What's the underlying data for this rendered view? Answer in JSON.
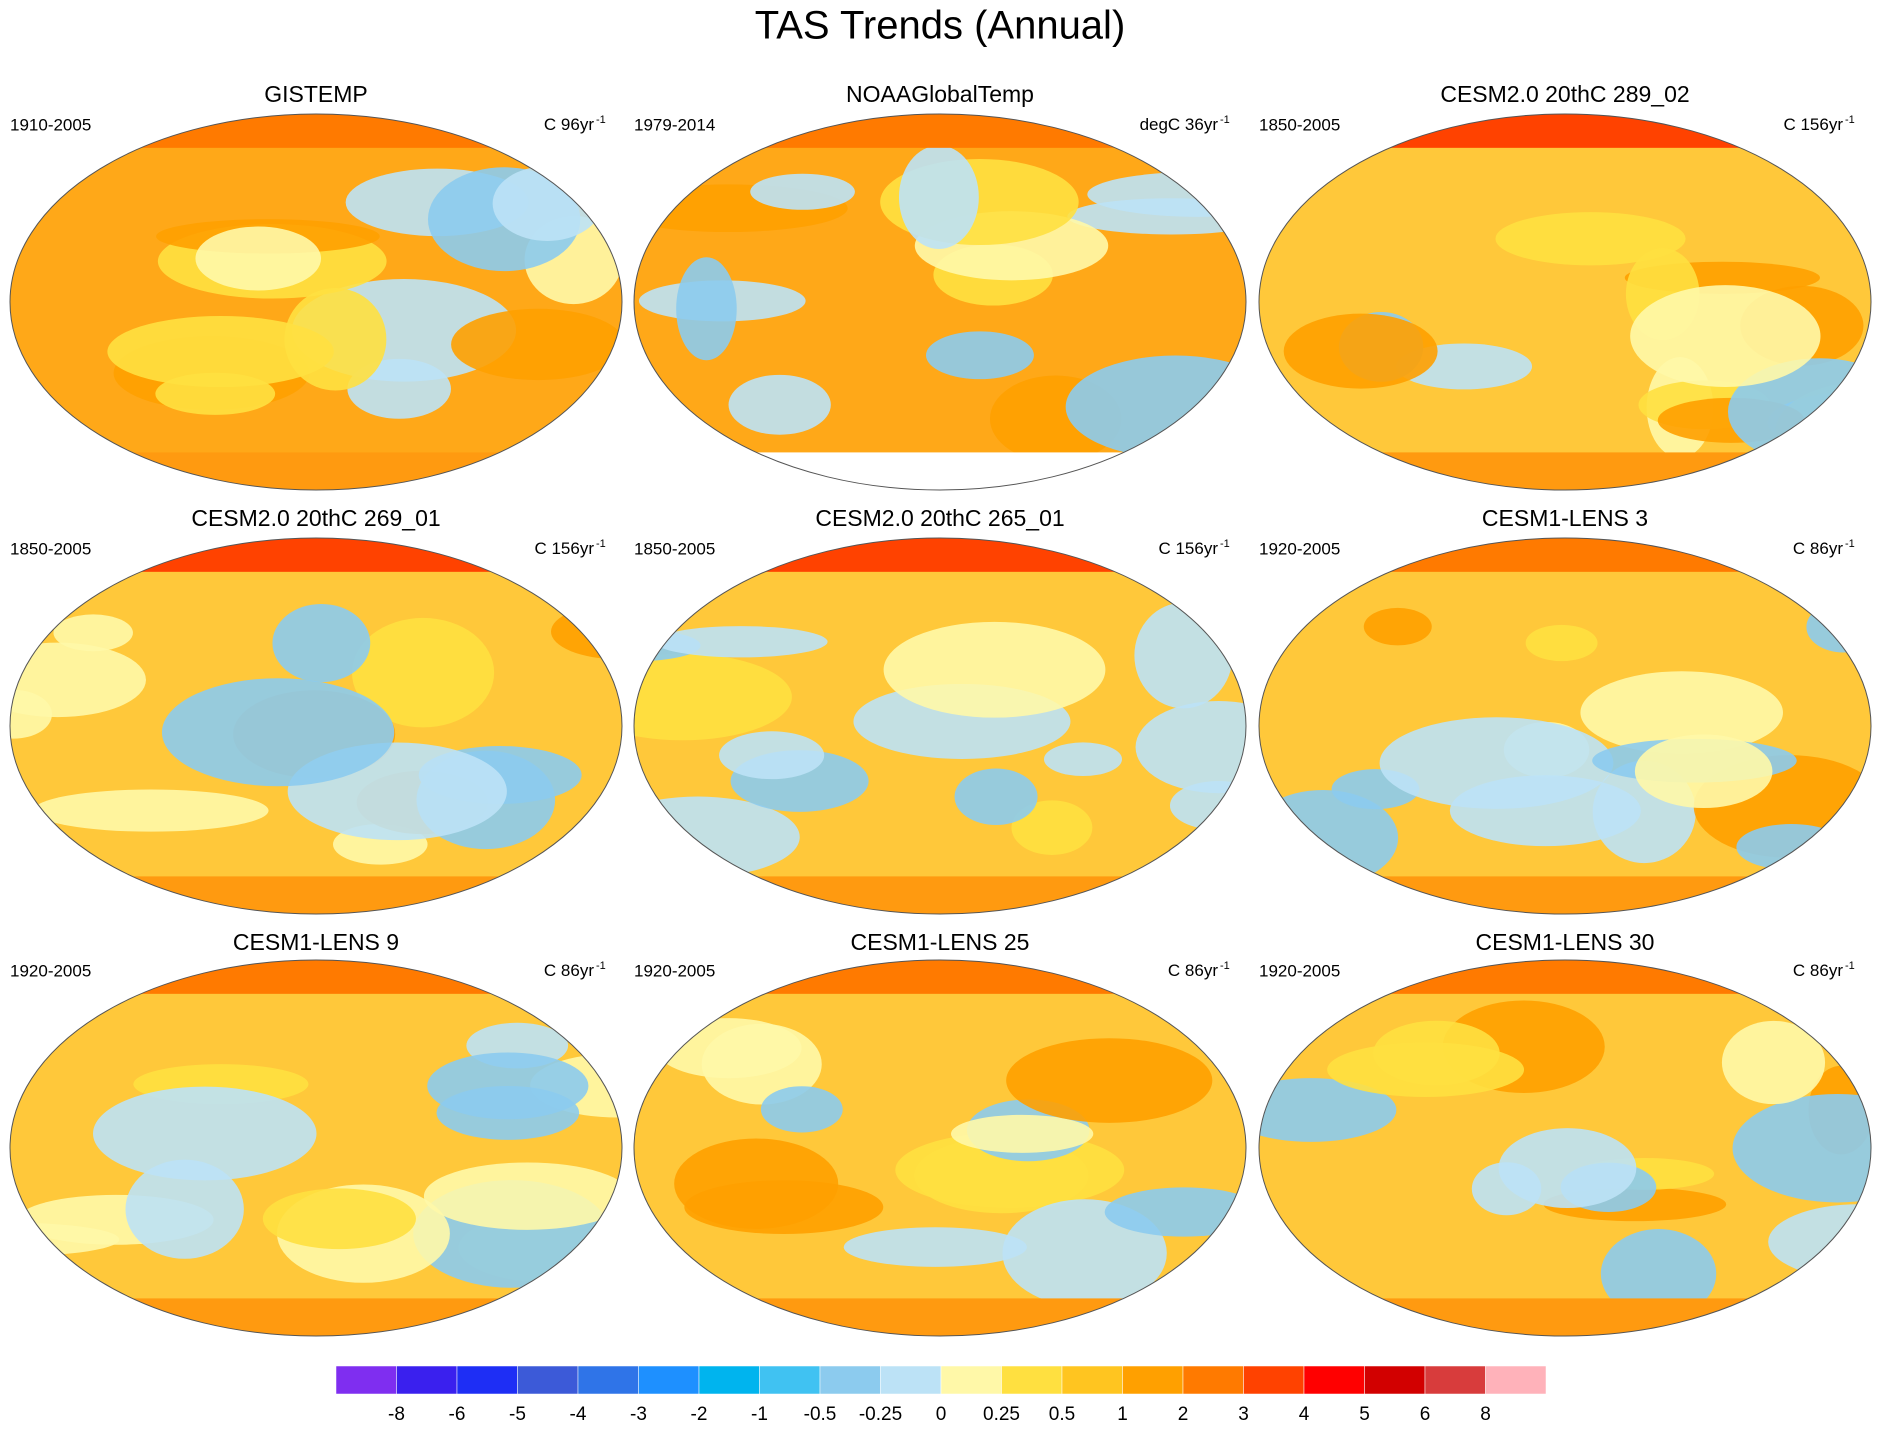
{
  "title": "TAS Trends (Annual)",
  "panels": [
    {
      "title": "GISTEMP",
      "period": "1910-2005",
      "units": "C 96yr",
      "exponent": "-1"
    },
    {
      "title": "NOAAGlobalTemp",
      "period": "1979-2014",
      "units": "degC 36yr",
      "exponent": "-1"
    },
    {
      "title": "CESM2.0 20thC 289_02",
      "period": "1850-2005",
      "units": "C 156yr",
      "exponent": "-1"
    },
    {
      "title": "CESM2.0 20thC 269_01",
      "period": "1850-2005",
      "units": "C 156yr",
      "exponent": "-1"
    },
    {
      "title": "CESM2.0 20thC 265_01",
      "period": "1850-2005",
      "units": "C 156yr",
      "exponent": "-1"
    },
    {
      "title": "CESM1-LENS 3",
      "period": "1920-2005",
      "units": "C 86yr",
      "exponent": "-1"
    },
    {
      "title": "CESM1-LENS 9",
      "period": "1920-2005",
      "units": "C 86yr",
      "exponent": "-1"
    },
    {
      "title": "CESM1-LENS 25",
      "period": "1920-2005",
      "units": "C 86yr",
      "exponent": "-1"
    },
    {
      "title": "CESM1-LENS 30",
      "period": "1920-2005",
      "units": "C 86yr",
      "exponent": "-1"
    }
  ],
  "colorbar": {
    "colors": [
      "#7f2ef0",
      "#3a20ee",
      "#1e2ef5",
      "#3c5ad8",
      "#2f74e8",
      "#1e90ff",
      "#00b4ee",
      "#40c2f2",
      "#8ccbee",
      "#bce2f6",
      "#fff8a8",
      "#ffe040",
      "#ffc520",
      "#ffa000",
      "#ff7a00",
      "#ff4200",
      "#ff0000",
      "#d20000",
      "#d83c3c",
      "#ffb2ba"
    ],
    "labels": [
      -8,
      -6,
      -5,
      -4,
      -3,
      -2,
      -1,
      -0.5,
      -0.25,
      0,
      0.25,
      0.5,
      1,
      2,
      3,
      4,
      5,
      6,
      8
    ]
  }
}
